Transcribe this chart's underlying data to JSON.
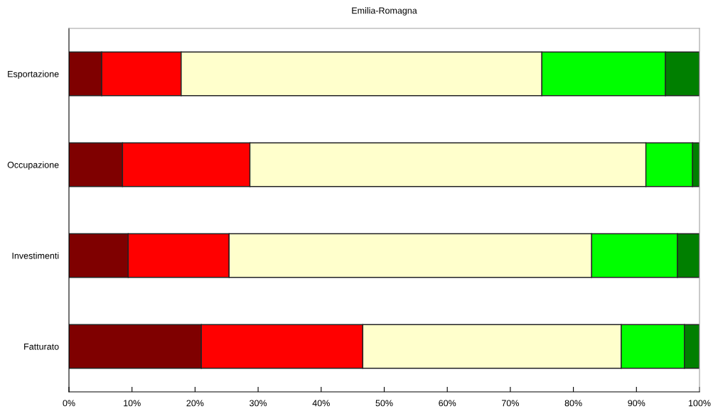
{
  "chart_data": {
    "type": "bar",
    "orientation": "horizontal",
    "stacked": true,
    "title": "Emilia-Romagna",
    "categories": [
      "Esportazione",
      "Occupazione",
      "Investimenti",
      "Fatturato"
    ],
    "series": [
      {
        "color": "#7f0000",
        "values": [
          5.2,
          8.5,
          9.4,
          21.0
        ]
      },
      {
        "color": "#ff0000",
        "values": [
          12.6,
          20.2,
          16.0,
          25.6
        ]
      },
      {
        "color": "#ffffcc",
        "values": [
          57.2,
          62.8,
          57.5,
          41.0
        ]
      },
      {
        "color": "#00ff00",
        "values": [
          19.6,
          7.4,
          13.6,
          10.0
        ]
      },
      {
        "color": "#007f00",
        "values": [
          5.4,
          1.1,
          3.5,
          2.4
        ]
      }
    ],
    "xlim": [
      0,
      100
    ],
    "xticks": [
      {
        "value": 0,
        "label": "0%"
      },
      {
        "value": 10,
        "label": "10%"
      },
      {
        "value": 20,
        "label": "20%"
      },
      {
        "value": 30,
        "label": "30%"
      },
      {
        "value": 40,
        "label": "40%"
      },
      {
        "value": 50,
        "label": "50%"
      },
      {
        "value": 60,
        "label": "60%"
      },
      {
        "value": 70,
        "label": "70%"
      },
      {
        "value": 80,
        "label": "80%"
      },
      {
        "value": 90,
        "label": "90%"
      },
      {
        "value": 100,
        "label": "100%"
      }
    ],
    "grid": false,
    "legend": false
  }
}
